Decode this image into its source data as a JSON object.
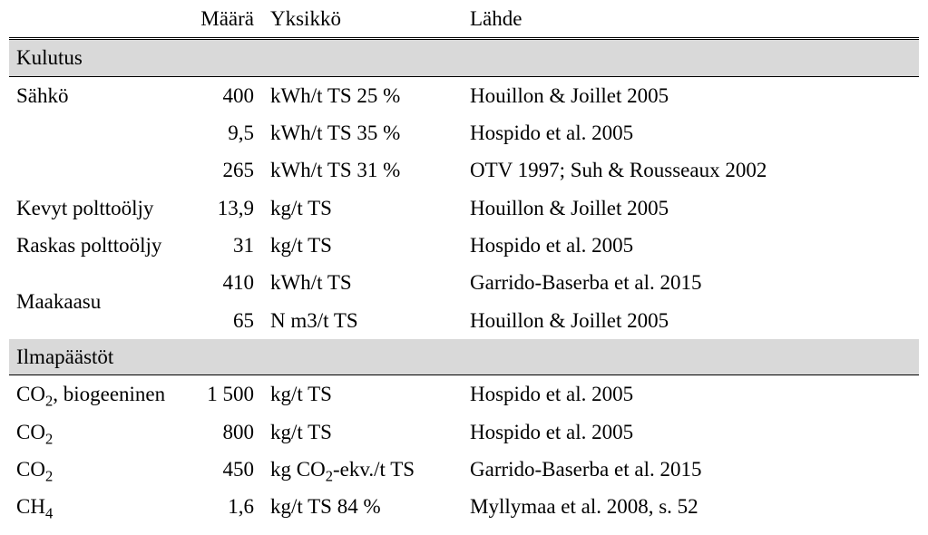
{
  "type": "table",
  "background_color": "#ffffff",
  "text_color": "#000000",
  "font_family": "Times New Roman",
  "font_size_pt": 17,
  "section_bg_color": "#d9d9d9",
  "section_border_color": "#000000",
  "header_rule": "double 3px #000000",
  "columns": {
    "c0": "",
    "c1": "Määrä",
    "c2": "Yksikkö",
    "c3": "Lähde"
  },
  "column_align": [
    "left",
    "right",
    "left",
    "left"
  ],
  "sections": {
    "s1": {
      "title": "Kulutus"
    },
    "s2": {
      "title": "Ilmapäästöt"
    }
  },
  "s1r1": {
    "label": "Sähkö",
    "amount": "400",
    "unit": "kWh/t TS 25 %",
    "source": "Houillon & Joillet 2005"
  },
  "s1r2": {
    "label": "",
    "amount": "9,5",
    "unit": "kWh/t TS 35 %",
    "source": "Hospido et al. 2005"
  },
  "s1r3": {
    "label": "",
    "amount": "265",
    "unit": "kWh/t TS 31 %",
    "source": "OTV 1997; Suh & Rousseaux 2002"
  },
  "s1r4": {
    "label": "Kevyt polttoöljy",
    "amount": "13,9",
    "unit": "kg/t TS",
    "source": "Houillon & Joillet 2005"
  },
  "s1r5": {
    "label": "Raskas polttoöljy",
    "amount": "31",
    "unit": "kg/t TS",
    "source": "Hospido et al. 2005"
  },
  "s1r6": {
    "label": "Maakaasu",
    "amount": "410",
    "unit": "kWh/t TS",
    "source": "Garrido-Baserba et al. 2015"
  },
  "s1r7": {
    "label": "",
    "amount": "65",
    "unit": "N m3/t TS",
    "source": "Houillon & Joillet 2005"
  },
  "s2r1": {
    "label_pre": "CO",
    "label_sub": "2",
    "label_post": ", biogeeninen",
    "amount": "1 500",
    "unit": "kg/t TS",
    "source": "Hospido et al. 2005"
  },
  "s2r2": {
    "label_pre": "CO",
    "label_sub": "2",
    "label_post": "",
    "amount": "800",
    "unit": "kg/t TS",
    "source": "Hospido et al. 2005"
  },
  "s2r3": {
    "label_pre": "CO",
    "label_sub": "2",
    "label_post": "",
    "amount": "450",
    "unit_pre": "kg CO",
    "unit_sub": "2",
    "unit_post": "-ekv./t TS",
    "source": "Garrido-Baserba et al. 2015"
  },
  "s2r4": {
    "label_pre": "CH",
    "label_sub": "4",
    "label_post": "",
    "amount": "1,6",
    "unit": "kg/t TS 84 %",
    "source": "Myllymaa et al. 2008, s. 52"
  }
}
